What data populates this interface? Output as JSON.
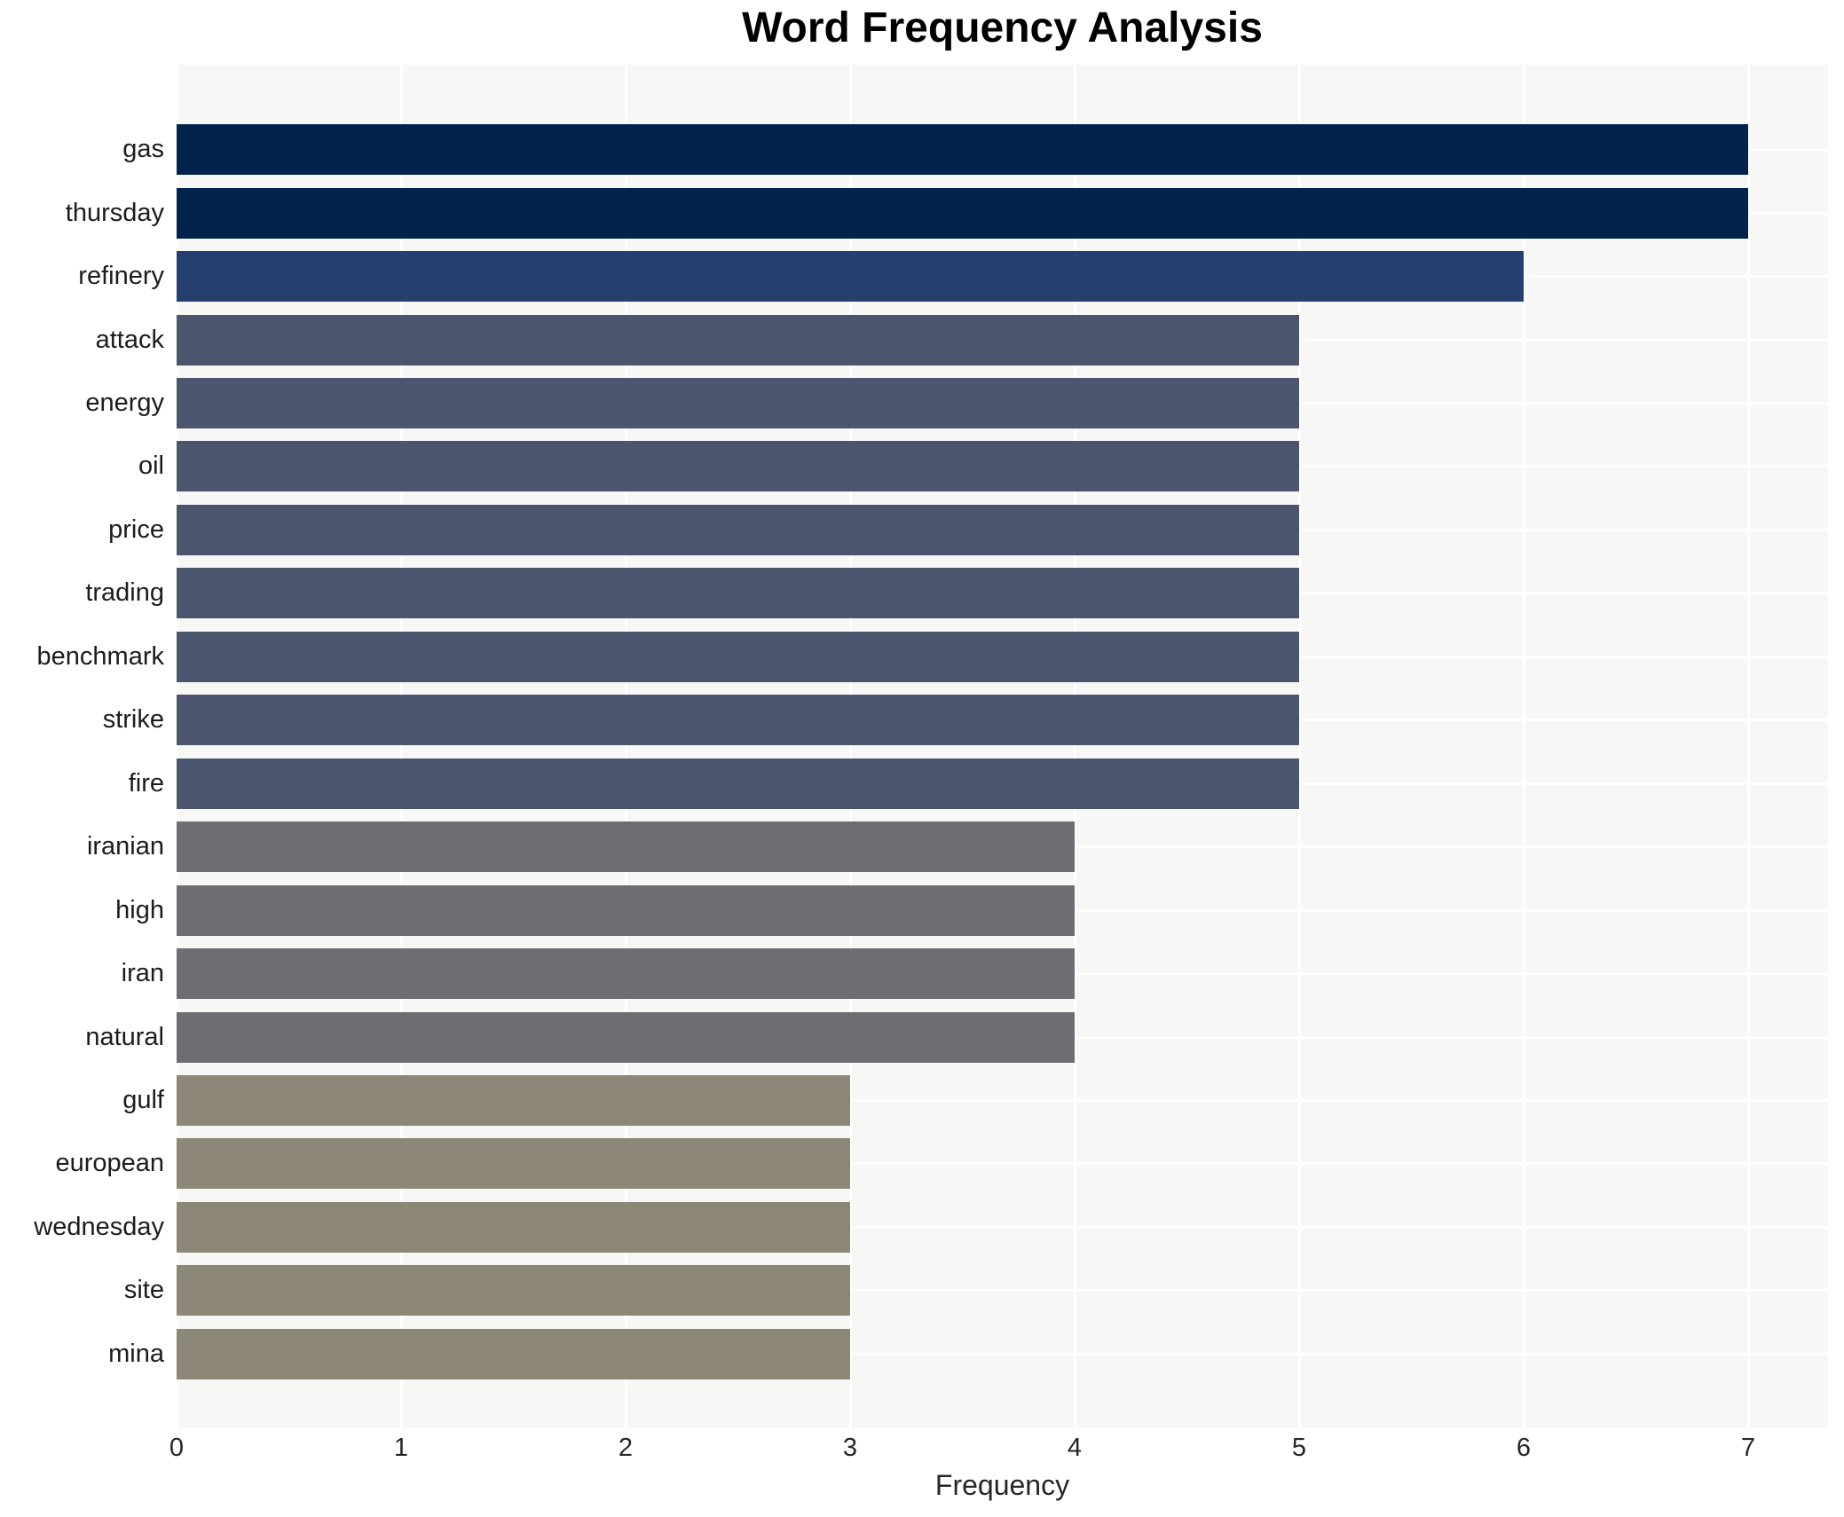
{
  "chart_data": {
    "type": "bar",
    "orientation": "horizontal",
    "title": "Word Frequency Analysis",
    "xlabel": "Frequency",
    "ylabel": "",
    "categories": [
      "gas",
      "thursday",
      "refinery",
      "attack",
      "energy",
      "oil",
      "price",
      "trading",
      "benchmark",
      "strike",
      "fire",
      "iranian",
      "high",
      "iran",
      "natural",
      "gulf",
      "european",
      "wednesday",
      "site",
      "mina"
    ],
    "values": [
      7,
      7,
      6,
      5,
      5,
      5,
      5,
      5,
      5,
      5,
      5,
      4,
      4,
      4,
      4,
      3,
      3,
      3,
      3,
      3
    ],
    "xlim": [
      0,
      7.36
    ],
    "xticks": [
      0,
      1,
      2,
      3,
      4,
      5,
      6,
      7
    ],
    "grid": true,
    "legend": false,
    "value_colors": {
      "7": "#02234c",
      "6": "#253f6e",
      "5": "#4c556e",
      "4": "#6c6e72",
      "3": "#8d8778"
    },
    "colors": {
      "page_background": "#ffffff",
      "plot_background": "#f7f7f6",
      "gridline": "#ffffff",
      "title_text": "#000000",
      "axis_text": "#262626",
      "category_text": "#1c1c1c"
    }
  }
}
